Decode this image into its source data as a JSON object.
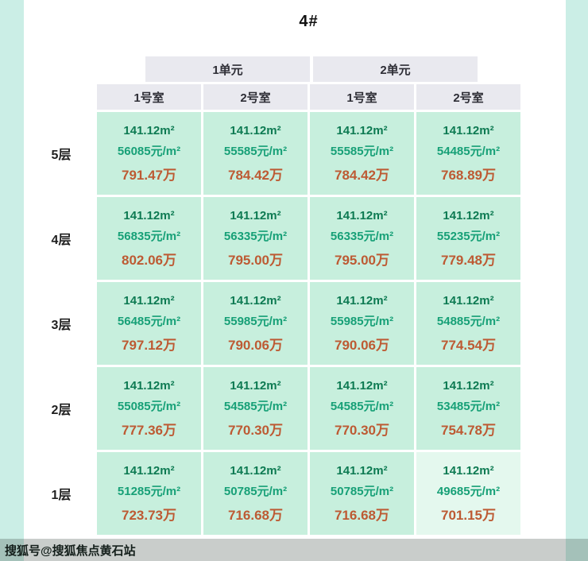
{
  "page": {
    "title": "4#",
    "watermark": "搜狐号@搜狐焦点黄石站"
  },
  "colors": {
    "page_bg": "#cbeee6",
    "header_bg": "#e9e9ef",
    "cell_bg": "#c7efdd",
    "cell_bg_light": "#e4f8ee",
    "area_text": "#0d7a52",
    "unit_price_text": "#17a077",
    "total_text": "#bd5a33"
  },
  "table": {
    "unit_headers": [
      "1单元",
      "2单元"
    ],
    "room_headers": [
      "1号室",
      "2号室",
      "1号室",
      "2号室"
    ],
    "floors": [
      {
        "label": "5层",
        "cells": [
          {
            "area": "141.12m²",
            "unit_price": "56085元/m²",
            "total": "791.47万"
          },
          {
            "area": "141.12m²",
            "unit_price": "55585元/m²",
            "total": "784.42万"
          },
          {
            "area": "141.12m²",
            "unit_price": "55585元/m²",
            "total": "784.42万"
          },
          {
            "area": "141.12m²",
            "unit_price": "54485元/m²",
            "total": "768.89万"
          }
        ]
      },
      {
        "label": "4层",
        "cells": [
          {
            "area": "141.12m²",
            "unit_price": "56835元/m²",
            "total": "802.06万"
          },
          {
            "area": "141.12m²",
            "unit_price": "56335元/m²",
            "total": "795.00万"
          },
          {
            "area": "141.12m²",
            "unit_price": "56335元/m²",
            "total": "795.00万"
          },
          {
            "area": "141.12m²",
            "unit_price": "55235元/m²",
            "total": "779.48万"
          }
        ]
      },
      {
        "label": "3层",
        "cells": [
          {
            "area": "141.12m²",
            "unit_price": "56485元/m²",
            "total": "797.12万"
          },
          {
            "area": "141.12m²",
            "unit_price": "55985元/m²",
            "total": "790.06万"
          },
          {
            "area": "141.12m²",
            "unit_price": "55985元/m²",
            "total": "790.06万"
          },
          {
            "area": "141.12m²",
            "unit_price": "54885元/m²",
            "total": "774.54万"
          }
        ]
      },
      {
        "label": "2层",
        "cells": [
          {
            "area": "141.12m²",
            "unit_price": "55085元/m²",
            "total": "777.36万"
          },
          {
            "area": "141.12m²",
            "unit_price": "54585元/m²",
            "total": "770.30万"
          },
          {
            "area": "141.12m²",
            "unit_price": "54585元/m²",
            "total": "770.30万"
          },
          {
            "area": "141.12m²",
            "unit_price": "53485元/m²",
            "total": "754.78万"
          }
        ]
      },
      {
        "label": "1层",
        "cells": [
          {
            "area": "141.12m²",
            "unit_price": "51285元/m²",
            "total": "723.73万"
          },
          {
            "area": "141.12m²",
            "unit_price": "50785元/m²",
            "total": "716.68万"
          },
          {
            "area": "141.12m²",
            "unit_price": "50785元/m²",
            "total": "716.68万"
          },
          {
            "area": "141.12m²",
            "unit_price": "49685元/m²",
            "total": "701.15万"
          }
        ]
      }
    ]
  },
  "chart_data": {
    "type": "table",
    "title": "4#",
    "column_groups": [
      "1单元",
      "2单元"
    ],
    "columns": [
      "1单元-1号室",
      "1单元-2号室",
      "2单元-1号室",
      "2单元-2号室"
    ],
    "rows": [
      "5层",
      "4层",
      "3层",
      "2层",
      "1层"
    ],
    "area_m2": 141.12,
    "unit_price_yuan_per_m2": [
      [
        56085,
        55585,
        55585,
        54485
      ],
      [
        56835,
        56335,
        56335,
        55235
      ],
      [
        56485,
        55985,
        55985,
        54885
      ],
      [
        55085,
        54585,
        54585,
        53485
      ],
      [
        51285,
        50785,
        50785,
        49685
      ]
    ],
    "total_price_wan": [
      [
        791.47,
        784.42,
        784.42,
        768.89
      ],
      [
        802.06,
        795.0,
        795.0,
        779.48
      ],
      [
        797.12,
        790.06,
        790.06,
        774.54
      ],
      [
        777.36,
        770.3,
        770.3,
        754.78
      ],
      [
        723.73,
        716.68,
        716.68,
        701.15
      ]
    ]
  }
}
